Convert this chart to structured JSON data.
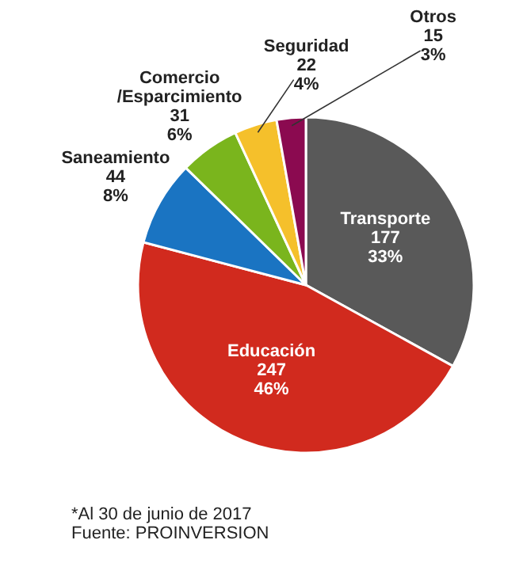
{
  "chart_data": {
    "type": "pie",
    "categories": [
      "Transporte",
      "Educación",
      "Saneamiento",
      "Comercio /Esparcimiento",
      "Seguridad",
      "Otros"
    ],
    "values": [
      177,
      247,
      44,
      31,
      22,
      15
    ],
    "value_labels": [
      "177\n33%",
      "247\n46%",
      "44\n8%",
      "31\n6%",
      "22\n4%",
      "15\n3%"
    ],
    "colors": [
      "#595959",
      "#d12a1e",
      "#1a74c2",
      "#7ab51d",
      "#f5c02b",
      "#8b0a50"
    ],
    "annotations": [
      "*Al 30 de junio de 2017",
      "Fuente: PROINVERSION"
    ]
  }
}
